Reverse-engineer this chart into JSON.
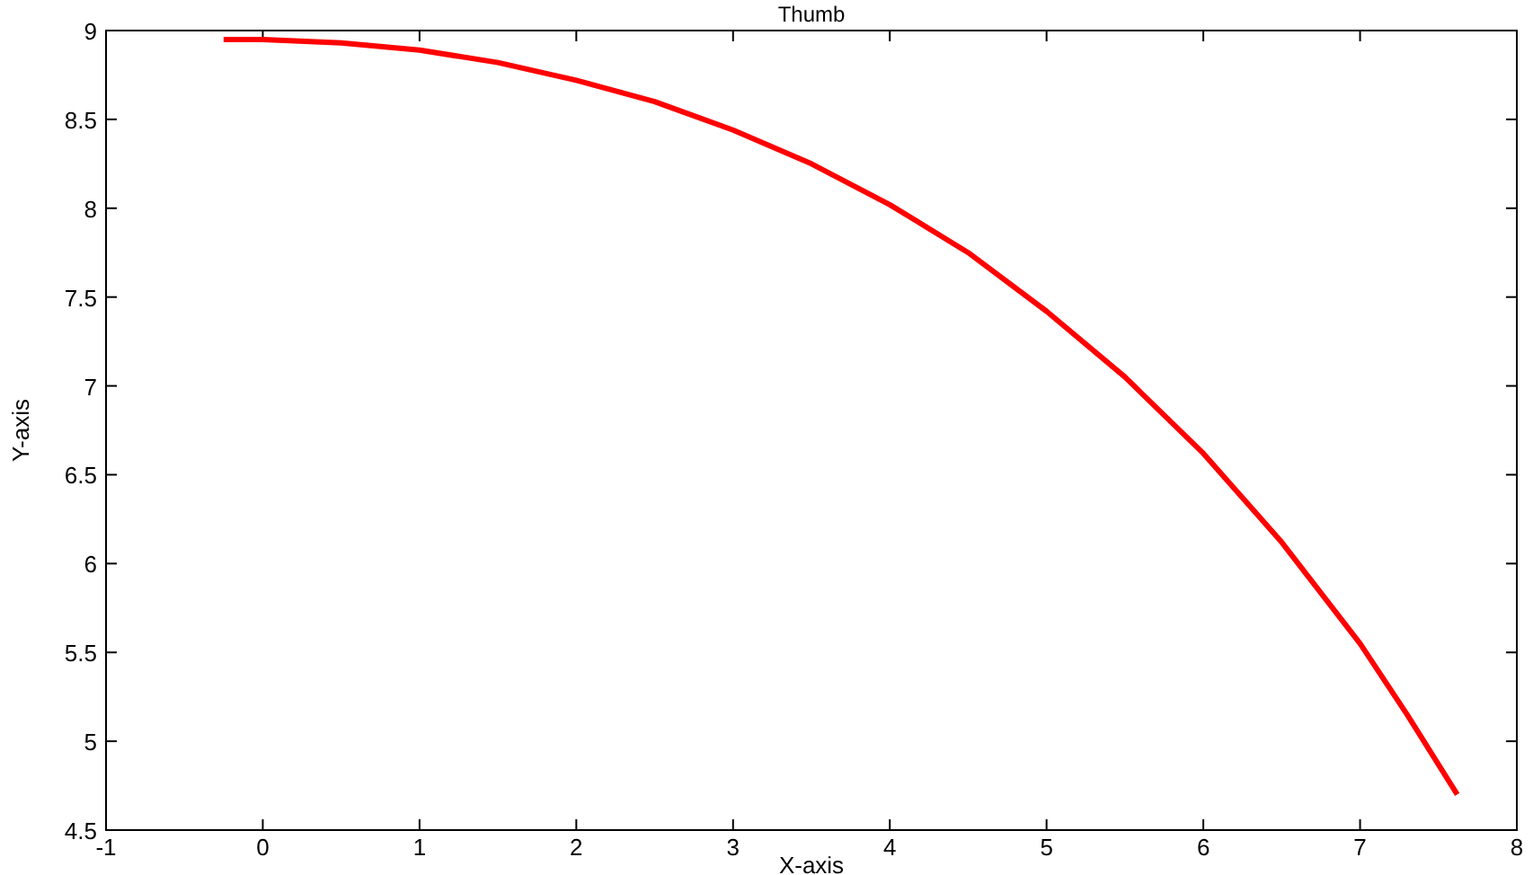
{
  "chart_data": {
    "type": "line",
    "title": "Thumb",
    "xlabel": "X-axis",
    "ylabel": "Y-axis",
    "series": [
      {
        "color": "#ff0000",
        "x": [
          -0.25,
          0,
          0.5,
          1,
          1.5,
          2,
          2.5,
          3,
          3.5,
          4,
          4.5,
          5,
          5.5,
          6,
          6.5,
          7,
          7.3,
          7.62
        ],
        "values": [
          8.95,
          8.95,
          8.93,
          8.89,
          8.82,
          8.72,
          8.6,
          8.44,
          8.25,
          8.02,
          7.75,
          7.42,
          7.05,
          6.62,
          6.12,
          5.55,
          5.15,
          4.7
        ]
      }
    ],
    "xlim": [
      -1,
      8
    ],
    "xticks": [
      -1,
      0,
      1,
      2,
      3,
      4,
      5,
      6,
      7,
      8
    ],
    "ylim": [
      4.5,
      9
    ],
    "yticks": [
      4.5,
      5,
      5.5,
      6,
      6.5,
      7,
      7.5,
      8,
      8.5,
      9
    ],
    "grid": false
  }
}
